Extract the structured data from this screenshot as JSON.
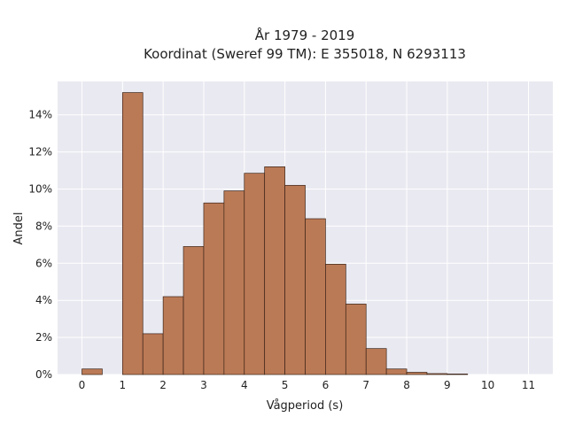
{
  "chart_data": {
    "type": "bar",
    "title_lines": [
      "År 1979 - 2019",
      "Koordinat (Sweref 99 TM): E 355018, N 6293113"
    ],
    "xlabel": "Vågperiod (s)",
    "ylabel": "Andel",
    "x_ticks": [
      0,
      1,
      2,
      3,
      4,
      5,
      6,
      7,
      8,
      9,
      10,
      11
    ],
    "x_range": [
      -0.6,
      11.6
    ],
    "y_ticks": [
      0,
      2,
      4,
      6,
      8,
      10,
      12,
      14
    ],
    "y_tick_suffix": "%",
    "ylim": [
      0,
      15.8
    ],
    "bin_width": 0.5,
    "bins": [
      {
        "start": 0.0,
        "value": 0.3
      },
      {
        "start": 1.0,
        "value": 15.2
      },
      {
        "start": 1.5,
        "value": 2.2
      },
      {
        "start": 2.0,
        "value": 4.2
      },
      {
        "start": 2.5,
        "value": 6.9
      },
      {
        "start": 3.0,
        "value": 9.25
      },
      {
        "start": 3.5,
        "value": 9.9
      },
      {
        "start": 4.0,
        "value": 10.85
      },
      {
        "start": 4.5,
        "value": 11.2
      },
      {
        "start": 5.0,
        "value": 10.2
      },
      {
        "start": 5.5,
        "value": 8.4
      },
      {
        "start": 6.0,
        "value": 5.95
      },
      {
        "start": 6.5,
        "value": 3.8
      },
      {
        "start": 7.0,
        "value": 1.4
      },
      {
        "start": 7.5,
        "value": 0.3
      },
      {
        "start": 8.0,
        "value": 0.12
      },
      {
        "start": 8.5,
        "value": 0.05
      },
      {
        "start": 9.0,
        "value": 0.03
      }
    ],
    "grid": true,
    "colors": {
      "bar_fill": "#bb7a56",
      "bar_edge": "#3b2418",
      "plot_background": "#e9e9f1",
      "grid": "#ffffff"
    }
  }
}
